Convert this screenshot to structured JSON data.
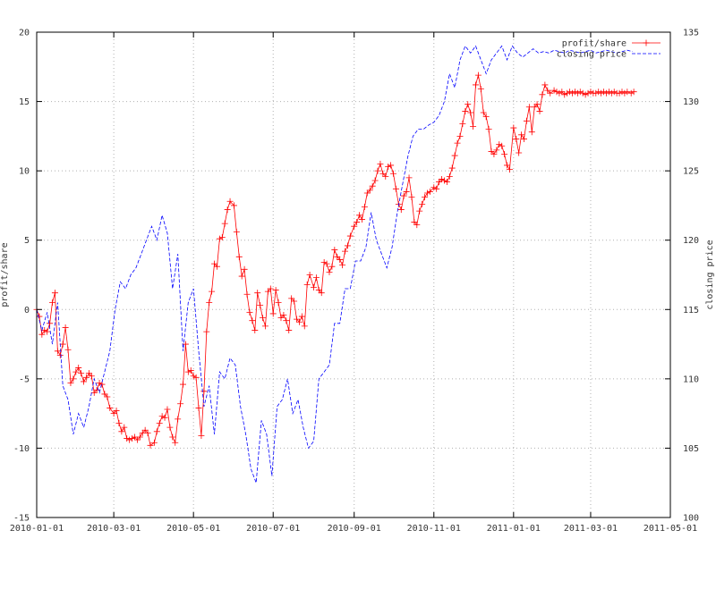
{
  "chart_data": {
    "type": "line",
    "title": "",
    "xlabel": "",
    "ylabel": "profit/share",
    "y2label": "closing price",
    "xlim": [
      "2010-01-01",
      "2011-05-01"
    ],
    "ylim": [
      -15,
      20
    ],
    "y2lim": [
      100,
      135
    ],
    "grid": true,
    "legend_position": "top-right",
    "x_ticks": [
      "2010-01-01",
      "2010-03-01",
      "2010-05-01",
      "2010-07-01",
      "2010-09-01",
      "2010-11-01",
      "2011-01-01",
      "2011-03-01",
      "2011-05-01"
    ],
    "y_ticks": [
      -15,
      -10,
      -5,
      0,
      5,
      10,
      15,
      20
    ],
    "y2_ticks": [
      100,
      105,
      110,
      115,
      120,
      125,
      130,
      135
    ],
    "series": [
      {
        "name": "profit/share",
        "axis": "left",
        "color": "#ff0000",
        "style": "solid-plus-markers",
        "x": [
          "2010-01-01",
          "2010-01-03",
          "2010-01-05",
          "2010-01-07",
          "2010-01-09",
          "2010-01-11",
          "2010-01-13",
          "2010-01-15",
          "2010-01-17",
          "2010-01-19",
          "2010-01-21",
          "2010-01-23",
          "2010-01-25",
          "2010-01-27",
          "2010-01-29",
          "2010-01-31",
          "2010-02-02",
          "2010-02-04",
          "2010-02-06",
          "2010-02-08",
          "2010-02-10",
          "2010-02-12",
          "2010-02-14",
          "2010-02-16",
          "2010-02-18",
          "2010-02-20",
          "2010-02-22",
          "2010-02-24",
          "2010-02-26",
          "2010-03-01",
          "2010-03-03",
          "2010-03-05",
          "2010-03-07",
          "2010-03-09",
          "2010-03-11",
          "2010-03-13",
          "2010-03-15",
          "2010-03-17",
          "2010-03-19",
          "2010-03-21",
          "2010-03-23",
          "2010-03-25",
          "2010-03-27",
          "2010-03-29",
          "2010-04-01",
          "2010-04-03",
          "2010-04-05",
          "2010-04-07",
          "2010-04-09",
          "2010-04-11",
          "2010-04-13",
          "2010-04-15",
          "2010-04-17",
          "2010-04-19",
          "2010-04-21",
          "2010-04-23",
          "2010-04-25",
          "2010-04-27",
          "2010-04-29",
          "2010-05-01",
          "2010-05-03",
          "2010-05-05",
          "2010-05-07",
          "2010-05-09",
          "2010-05-11",
          "2010-05-13",
          "2010-05-15",
          "2010-05-17",
          "2010-05-19",
          "2010-05-21",
          "2010-05-23",
          "2010-05-25",
          "2010-05-27",
          "2010-05-29",
          "2010-06-01",
          "2010-06-03",
          "2010-06-05",
          "2010-06-07",
          "2010-06-09",
          "2010-06-11",
          "2010-06-13",
          "2010-06-15",
          "2010-06-17",
          "2010-06-19",
          "2010-06-21",
          "2010-06-23",
          "2010-06-25",
          "2010-06-27",
          "2010-06-29",
          "2010-07-01",
          "2010-07-03",
          "2010-07-05",
          "2010-07-07",
          "2010-07-09",
          "2010-07-11",
          "2010-07-13",
          "2010-07-15",
          "2010-07-17",
          "2010-07-19",
          "2010-07-21",
          "2010-07-23",
          "2010-07-25",
          "2010-07-27",
          "2010-07-29",
          "2010-08-01",
          "2010-08-03",
          "2010-08-05",
          "2010-08-07",
          "2010-08-09",
          "2010-08-11",
          "2010-08-13",
          "2010-08-15",
          "2010-08-17",
          "2010-08-19",
          "2010-08-21",
          "2010-08-23",
          "2010-08-25",
          "2010-08-27",
          "2010-08-29",
          "2010-09-01",
          "2010-09-03",
          "2010-09-05",
          "2010-09-07",
          "2010-09-09",
          "2010-09-11",
          "2010-09-13",
          "2010-09-15",
          "2010-09-17",
          "2010-09-19",
          "2010-09-21",
          "2010-09-23",
          "2010-09-25",
          "2010-09-27",
          "2010-09-29",
          "2010-10-01",
          "2010-10-03",
          "2010-10-05",
          "2010-10-07",
          "2010-10-09",
          "2010-10-11",
          "2010-10-13",
          "2010-10-15",
          "2010-10-17",
          "2010-10-19",
          "2010-10-21",
          "2010-10-23",
          "2010-10-25",
          "2010-10-27",
          "2010-10-29",
          "2010-11-01",
          "2010-11-03",
          "2010-11-05",
          "2010-11-07",
          "2010-11-09",
          "2010-11-11",
          "2010-11-13",
          "2010-11-15",
          "2010-11-17",
          "2010-11-19",
          "2010-11-21",
          "2010-11-23",
          "2010-11-25",
          "2010-11-27",
          "2010-11-29",
          "2010-12-01",
          "2010-12-03",
          "2010-12-05",
          "2010-12-07",
          "2010-12-09",
          "2010-12-11",
          "2010-12-13",
          "2010-12-15",
          "2010-12-17",
          "2010-12-19",
          "2010-12-21",
          "2010-12-23",
          "2010-12-25",
          "2010-12-27",
          "2010-12-29",
          "2011-01-01",
          "2011-01-03",
          "2011-01-05",
          "2011-01-07",
          "2011-01-09",
          "2011-01-11",
          "2011-01-13",
          "2011-01-15",
          "2011-01-17",
          "2011-01-19",
          "2011-01-21",
          "2011-01-23",
          "2011-01-25",
          "2011-01-27",
          "2011-01-29",
          "2011-02-01",
          "2011-02-03",
          "2011-02-05",
          "2011-02-07",
          "2011-02-09",
          "2011-02-11",
          "2011-02-13",
          "2011-02-15",
          "2011-02-17",
          "2011-02-19",
          "2011-02-21",
          "2011-02-23",
          "2011-02-25",
          "2011-02-27",
          "2011-03-01",
          "2011-03-03",
          "2011-03-05",
          "2011-03-07",
          "2011-03-09",
          "2011-03-11",
          "2011-03-13",
          "2011-03-15",
          "2011-03-17",
          "2011-03-19",
          "2011-03-21",
          "2011-03-23",
          "2011-03-25",
          "2011-03-27",
          "2011-03-29",
          "2011-04-01",
          "2011-04-03"
        ],
        "values": [
          0,
          -0.5,
          -1.8,
          -1.5,
          -1.6,
          -1,
          0.5,
          1.2,
          -3,
          -3.3,
          -2.5,
          -1.3,
          -2.9,
          -5.3,
          -5,
          -4.5,
          -4.2,
          -4.6,
          -5.2,
          -4.9,
          -4.6,
          -4.8,
          -6,
          -5.8,
          -5.3,
          -5.4,
          -6.1,
          -6.3,
          -7.1,
          -7.5,
          -7.3,
          -8.2,
          -8.8,
          -8.5,
          -9.3,
          -9.4,
          -9.3,
          -9.2,
          -9.4,
          -9.2,
          -8.9,
          -8.7,
          -8.9,
          -9.8,
          -9.6,
          -8.8,
          -8.2,
          -7.7,
          -7.8,
          -7.2,
          -8.5,
          -9.2,
          -9.6,
          -7.9,
          -6.8,
          -5.4,
          -2.5,
          -4.5,
          -4.4,
          -4.8,
          -4.9,
          -7.1,
          -9.1,
          -5.9,
          -1.6,
          0.5,
          1.3,
          3.3,
          3.1,
          5.1,
          5.2,
          6.2,
          7.2,
          7.8,
          7.5,
          5.6,
          3.8,
          2.4,
          2.9,
          1.1,
          -0.2,
          -0.8,
          -1.5,
          1.2,
          0.3,
          -0.6,
          -1.2,
          1.3,
          1.5,
          -0.3,
          1.4,
          0.5,
          -0.6,
          -0.4,
          -0.8,
          -1.5,
          0.8,
          0.6,
          -0.7,
          -0.9,
          -0.5,
          -1.2,
          1.8,
          2.5,
          1.6,
          2.3,
          1.4,
          1.2,
          3.4,
          3.3,
          2.7,
          3.1,
          4.3,
          3.8,
          3.6,
          3.2,
          4.2,
          4.6,
          5.3,
          6,
          6.3,
          6.8,
          6.5,
          7.4,
          8.4,
          8.6,
          8.9,
          9.3,
          10,
          10.5,
          9.8,
          9.6,
          10.3,
          10.4,
          9.8,
          8.7,
          7.6,
          7.2,
          8.2,
          8.5,
          9.5,
          8.1,
          6.3,
          6.1,
          7.1,
          7.6,
          8.1,
          8.4,
          8.5,
          8.8,
          8.7,
          9.2,
          9.4,
          9.3,
          9.2,
          9.6,
          10.2,
          11.1,
          12,
          12.5,
          13.4,
          14.3,
          14.8,
          14.2,
          13.2,
          16.2,
          16.9,
          15.9,
          14.2,
          13.9,
          13,
          11.4,
          11.2,
          11.5,
          11.9,
          11.8,
          11.2,
          10.4,
          10.1,
          13.1,
          12.3,
          11.3,
          12.6,
          12.3,
          13.6,
          14.6,
          12.8,
          14.6,
          14.8,
          14.3,
          15.5,
          16.2,
          15.8,
          15.6,
          15.8,
          15.7,
          15.6,
          15.7,
          15.5,
          15.6,
          15.7,
          15.6,
          15.7,
          15.6,
          15.7,
          15.6,
          15.5,
          15.6,
          15.7,
          15.6,
          15.6,
          15.7,
          15.6,
          15.7,
          15.6,
          15.7,
          15.6,
          15.7,
          15.6,
          15.6,
          15.7,
          15.6,
          15.7,
          15.6,
          15.7
        ]
      },
      {
        "name": "closing price",
        "axis": "right",
        "color": "#0000ff",
        "style": "dashed",
        "x": [
          "2010-01-01",
          "2010-01-05",
          "2010-01-09",
          "2010-01-13",
          "2010-01-17",
          "2010-01-21",
          "2010-01-25",
          "2010-01-29",
          "2010-02-02",
          "2010-02-06",
          "2010-02-10",
          "2010-02-14",
          "2010-02-18",
          "2010-02-22",
          "2010-02-26",
          "2010-03-02",
          "2010-03-06",
          "2010-03-10",
          "2010-03-14",
          "2010-03-18",
          "2010-03-22",
          "2010-03-26",
          "2010-03-30",
          "2010-04-03",
          "2010-04-07",
          "2010-04-11",
          "2010-04-15",
          "2010-04-19",
          "2010-04-23",
          "2010-04-27",
          "2010-05-01",
          "2010-05-05",
          "2010-05-09",
          "2010-05-13",
          "2010-05-17",
          "2010-05-21",
          "2010-05-25",
          "2010-05-29",
          "2010-06-02",
          "2010-06-06",
          "2010-06-10",
          "2010-06-14",
          "2010-06-18",
          "2010-06-22",
          "2010-06-26",
          "2010-06-30",
          "2010-07-04",
          "2010-07-08",
          "2010-07-12",
          "2010-07-16",
          "2010-07-20",
          "2010-07-24",
          "2010-07-28",
          "2010-08-01",
          "2010-08-05",
          "2010-08-09",
          "2010-08-13",
          "2010-08-17",
          "2010-08-21",
          "2010-08-25",
          "2010-08-29",
          "2010-09-02",
          "2010-09-06",
          "2010-09-10",
          "2010-09-14",
          "2010-09-18",
          "2010-09-22",
          "2010-09-26",
          "2010-09-30",
          "2010-10-04",
          "2010-10-08",
          "2010-10-12",
          "2010-10-16",
          "2010-10-20",
          "2010-10-24",
          "2010-10-28",
          "2010-11-01",
          "2010-11-05",
          "2010-11-09",
          "2010-11-13",
          "2010-11-17",
          "2010-11-21",
          "2010-11-25",
          "2010-11-29",
          "2010-12-03",
          "2010-12-07",
          "2010-12-11",
          "2010-12-15",
          "2010-12-19",
          "2010-12-23",
          "2010-12-27",
          "2010-12-31",
          "2011-01-04",
          "2011-01-08",
          "2011-01-12",
          "2011-01-16",
          "2011-01-20",
          "2011-01-24",
          "2011-01-28",
          "2011-02-01",
          "2011-02-05",
          "2011-02-09",
          "2011-02-13",
          "2011-02-17",
          "2011-02-21",
          "2011-02-25",
          "2011-03-01",
          "2011-03-05",
          "2011-03-09",
          "2011-03-13",
          "2011-03-17",
          "2011-03-21",
          "2011-03-25",
          "2011-03-29",
          "2011-04-02"
        ],
        "values": [
          115,
          113.5,
          114.8,
          112.5,
          115.5,
          109.5,
          108.5,
          106,
          107.5,
          106.5,
          108,
          110,
          109,
          110.5,
          112,
          115,
          117,
          116.5,
          117.5,
          118,
          119,
          120,
          121,
          120,
          121.8,
          120.5,
          116.5,
          119,
          112,
          115.5,
          116.5,
          112,
          108,
          109.5,
          106,
          110.5,
          110,
          111.5,
          111,
          108,
          106,
          103.5,
          102.5,
          107,
          106,
          103,
          108,
          108.5,
          110,
          107.5,
          108.5,
          106.5,
          105,
          105.5,
          110,
          110.5,
          111,
          114,
          114,
          116.5,
          116.5,
          118.5,
          118.5,
          119.5,
          122,
          120,
          119,
          118,
          119.5,
          122,
          124,
          126,
          127.5,
          128,
          128,
          128.3,
          128.5,
          129,
          130,
          132,
          131,
          133,
          134,
          133.5,
          134,
          133,
          132,
          133,
          133.5,
          134,
          133,
          134,
          133.5,
          133.2,
          133.5,
          133.8,
          133.5,
          133.6,
          133.5,
          133.7,
          133.6,
          133.5,
          133.7,
          133.6,
          133.5,
          133.6,
          133.7,
          133.5,
          133.6,
          133.7,
          133.6,
          133.5,
          133.6,
          133.7,
          133.6
        ]
      }
    ]
  }
}
